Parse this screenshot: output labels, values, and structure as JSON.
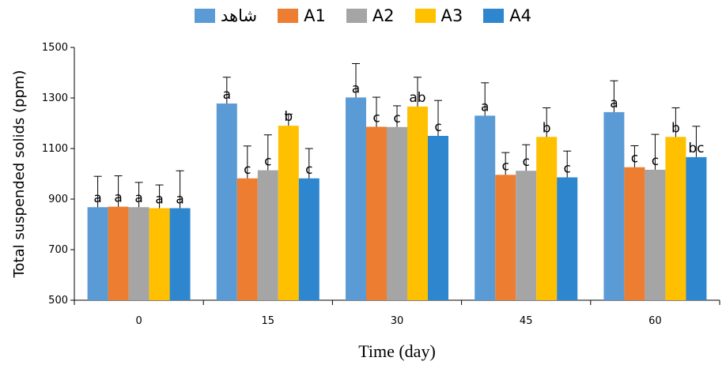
{
  "chart_data": {
    "type": "bar",
    "title": "",
    "xlabel": "Time (day)",
    "ylabel": "Total suspended solids (ppm)",
    "ylim": [
      500,
      1500
    ],
    "yticks": [
      "500",
      "700",
      "900",
      "1100",
      "1300",
      "1500"
    ],
    "categories": [
      "0",
      "15",
      "30",
      "45",
      "60"
    ],
    "legend_position": "top",
    "series": [
      {
        "name": "شاهد",
        "color": "#5B9BD5",
        "values": [
          868,
          1278,
          1302,
          1230,
          1244
        ],
        "errors": [
          122,
          104,
          134,
          130,
          124
        ],
        "labels": [
          "a",
          "a",
          "a",
          "a",
          "a"
        ]
      },
      {
        "name": "A1",
        "color": "#ED7D31",
        "values": [
          870,
          982,
          1186,
          996,
          1026
        ],
        "errors": [
          122,
          128,
          117,
          88,
          85
        ],
        "labels": [
          "a",
          "c",
          "c",
          "c",
          "c"
        ]
      },
      {
        "name": "A2",
        "color": "#A5A5A5",
        "values": [
          868,
          1014,
          1185,
          1012,
          1016
        ],
        "errors": [
          98,
          140,
          84,
          103,
          140
        ],
        "labels": [
          "a",
          "c",
          "c",
          "c",
          "c"
        ]
      },
      {
        "name": "A3",
        "color": "#FFC000",
        "values": [
          864,
          1190,
          1266,
          1146,
          1146
        ],
        "errors": [
          92,
          46,
          116,
          115,
          115
        ],
        "labels": [
          "a",
          "b",
          "ab",
          "b",
          "b"
        ]
      },
      {
        "name": "A4",
        "color": "#2E86CE",
        "values": [
          864,
          982,
          1150,
          986,
          1066
        ],
        "errors": [
          148,
          118,
          140,
          104,
          122
        ],
        "labels": [
          "a",
          "c",
          "c",
          "c",
          "bc"
        ]
      }
    ]
  }
}
